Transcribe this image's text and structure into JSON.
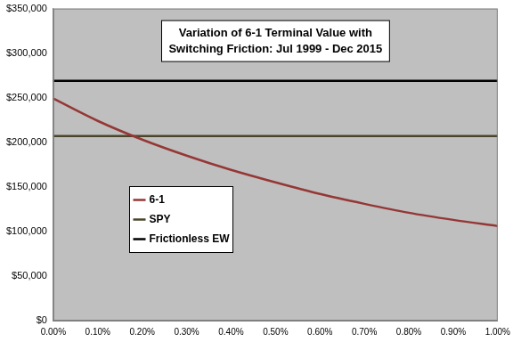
{
  "chart_data": {
    "type": "line",
    "title": "Variation of 6-1 Terminal Value with Switching Friction: Jul 1999 - Dec 2015",
    "categories": [
      "0.00%",
      "0.10%",
      "0.20%",
      "0.30%",
      "0.40%",
      "0.50%",
      "0.60%",
      "0.70%",
      "0.80%",
      "0.90%",
      "1.00%"
    ],
    "series": [
      {
        "name": "6-1",
        "color": "#953735",
        "values": [
          249000,
          224000,
          203000,
          185000,
          169000,
          155000,
          142000,
          131000,
          121000,
          113000,
          106000
        ]
      },
      {
        "name": "SPY",
        "color": "#4a452a",
        "values": [
          207000,
          207000,
          207000,
          207000,
          207000,
          207000,
          207000,
          207000,
          207000,
          207000,
          207000
        ]
      },
      {
        "name": "Frictionless EW",
        "color": "#000000",
        "values": [
          269000,
          269000,
          269000,
          269000,
          269000,
          269000,
          269000,
          269000,
          269000,
          269000,
          269000
        ]
      }
    ],
    "ylim": [
      0,
      350000
    ],
    "yticks": [
      {
        "value": 0,
        "label": "$0"
      },
      {
        "value": 50000,
        "label": "$50,000"
      },
      {
        "value": 100000,
        "label": "$100,000"
      },
      {
        "value": 150000,
        "label": "$150,000"
      },
      {
        "value": 200000,
        "label": "$200,000"
      },
      {
        "value": 250000,
        "label": "$250,000"
      },
      {
        "value": 300000,
        "label": "$300,000"
      },
      {
        "value": 350000,
        "label": "$350,000"
      }
    ],
    "grid": false,
    "legend": "left"
  }
}
